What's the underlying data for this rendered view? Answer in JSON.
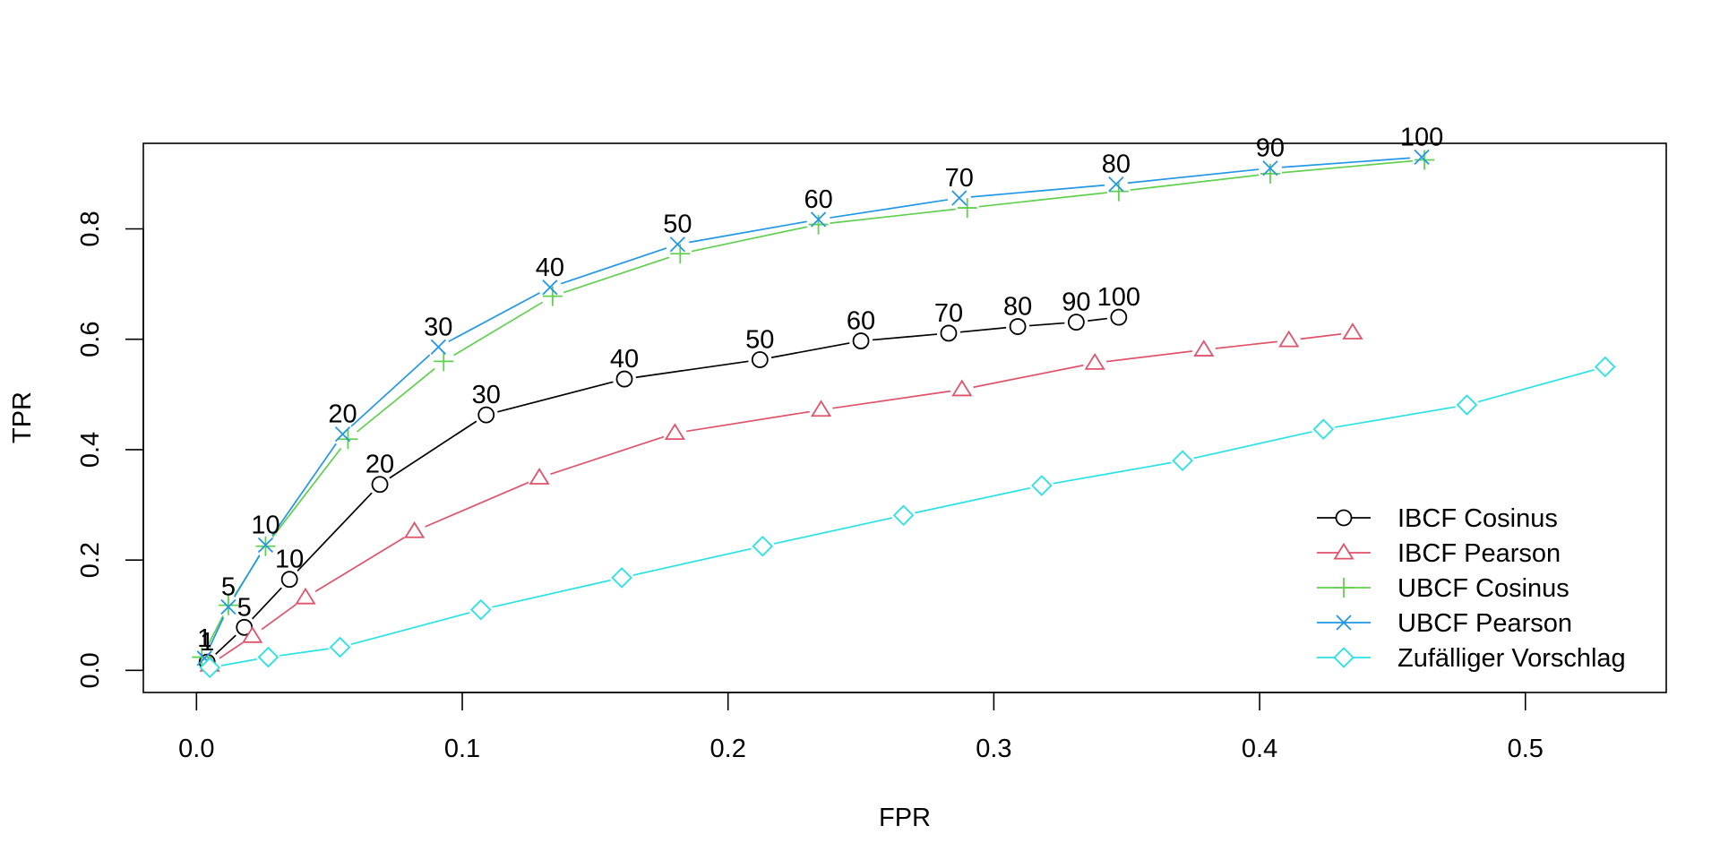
{
  "chart_data": {
    "type": "line",
    "title": "",
    "xlabel": "FPR",
    "ylabel": "TPR",
    "xlim": [
      -0.02,
      0.553
    ],
    "ylim": [
      -0.04,
      0.955
    ],
    "x_ticks": [
      {
        "value": 0.0,
        "label": "0.0"
      },
      {
        "value": 0.1,
        "label": "0.1"
      },
      {
        "value": 0.2,
        "label": "0.2"
      },
      {
        "value": 0.3,
        "label": "0.3"
      },
      {
        "value": 0.4,
        "label": "0.4"
      },
      {
        "value": 0.5,
        "label": "0.5"
      }
    ],
    "y_ticks": [
      {
        "value": 0.0,
        "label": "0.0"
      },
      {
        "value": 0.2,
        "label": "0.2"
      },
      {
        "value": 0.4,
        "label": "0.4"
      },
      {
        "value": 0.6,
        "label": "0.6"
      },
      {
        "value": 0.8,
        "label": "0.8"
      }
    ],
    "grid": false,
    "legend_position": "bottom-right",
    "series": [
      {
        "name": "IBCF Cosinus",
        "color": "#000000",
        "marker": "circle",
        "x": [
          0.004,
          0.018,
          0.035,
          0.069,
          0.109,
          0.161,
          0.212,
          0.25,
          0.283,
          0.309,
          0.331,
          0.347
        ],
        "y": [
          0.015,
          0.078,
          0.165,
          0.337,
          0.463,
          0.528,
          0.563,
          0.597,
          0.611,
          0.623,
          0.631,
          0.64
        ],
        "labels": [
          "1",
          "5",
          "10",
          "20",
          "30",
          "40",
          "50",
          "60",
          "70",
          "80",
          "90",
          "100"
        ]
      },
      {
        "name": "IBCF Pearson",
        "color": "#DF536B",
        "marker": "triangle",
        "x": [
          0.005,
          0.021,
          0.041,
          0.082,
          0.129,
          0.18,
          0.235,
          0.288,
          0.338,
          0.379,
          0.411,
          0.435
        ],
        "y": [
          0.01,
          0.062,
          0.132,
          0.252,
          0.349,
          0.43,
          0.472,
          0.509,
          0.557,
          0.581,
          0.598,
          0.612
        ],
        "labels": []
      },
      {
        "name": "UBCF Cosinus",
        "color": "#61D04F",
        "marker": "plus",
        "x": [
          0.002,
          0.012,
          0.026,
          0.057,
          0.093,
          0.134,
          0.182,
          0.234,
          0.29,
          0.347,
          0.404,
          0.462
        ],
        "y": [
          0.024,
          0.118,
          0.225,
          0.419,
          0.56,
          0.678,
          0.755,
          0.808,
          0.838,
          0.868,
          0.9,
          0.925
        ],
        "labels": []
      },
      {
        "name": "UBCF Pearson",
        "color": "#2297E6",
        "marker": "cross",
        "x": [
          0.003,
          0.012,
          0.026,
          0.055,
          0.091,
          0.133,
          0.181,
          0.234,
          0.287,
          0.346,
          0.404,
          0.461
        ],
        "y": [
          0.022,
          0.115,
          0.227,
          0.428,
          0.586,
          0.694,
          0.772,
          0.817,
          0.856,
          0.881,
          0.91,
          0.93
        ],
        "labels": [
          "1",
          "5",
          "10",
          "20",
          "30",
          "40",
          "50",
          "60",
          "70",
          "80",
          "90",
          "100"
        ]
      },
      {
        "name": "Zufälliger Vorschlag",
        "color": "#28E2E5",
        "marker": "diamond",
        "x": [
          0.005,
          0.027,
          0.054,
          0.107,
          0.16,
          0.213,
          0.266,
          0.318,
          0.371,
          0.424,
          0.478,
          0.53
        ],
        "y": [
          0.005,
          0.024,
          0.042,
          0.11,
          0.168,
          0.225,
          0.281,
          0.335,
          0.38,
          0.437,
          0.481,
          0.55
        ],
        "labels": []
      }
    ]
  }
}
